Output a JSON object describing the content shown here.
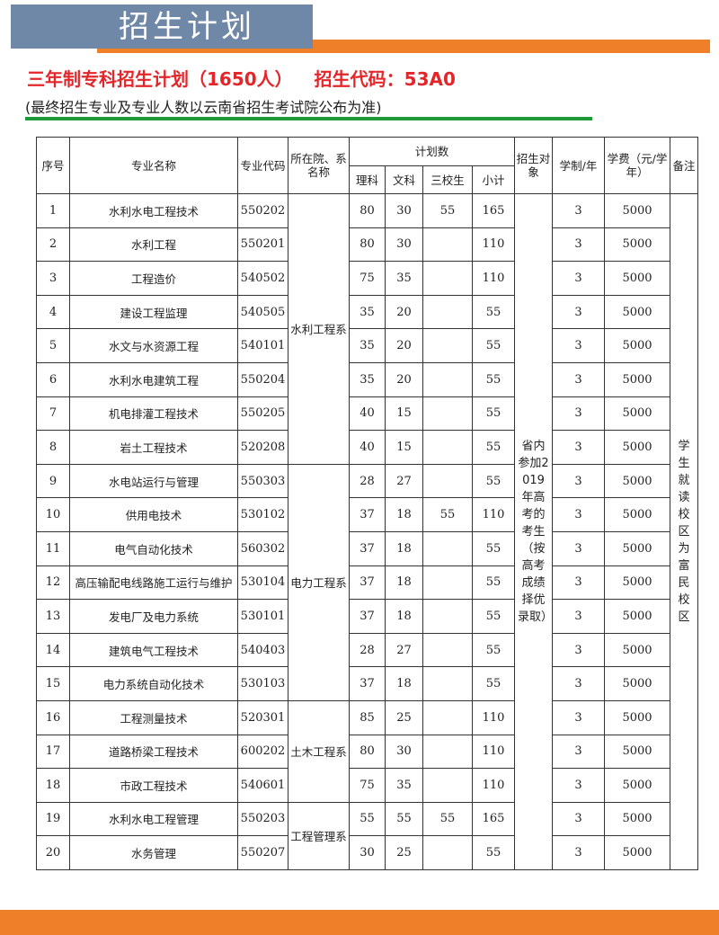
{
  "header": {
    "title": "招生计划",
    "plan_title": "三年制专科招生计划（1650人）",
    "code_label": "招生代码：53A0",
    "note": "(最终招生专业及专业人数以云南省招生考试院公布为准)"
  },
  "table": {
    "headers": {
      "no": "序号",
      "name": "专业名称",
      "code": "专业代码",
      "dept": "所在院、系名称",
      "plan": "计划数",
      "science": "理科",
      "arts": "文科",
      "three_school": "三校生",
      "subtotal": "小计",
      "target": "招生对象",
      "years": "学制/年",
      "fee": "学费（元/学年）",
      "remark": "备注"
    },
    "target_text": "省内参加2019年高考的考生（按高考成绩择优录取）",
    "remark_text": "学生就读校区为富民校区",
    "departments": [
      {
        "name": "水利工程系",
        "rows": 8
      },
      {
        "name": "电力工程系",
        "rows": 7
      },
      {
        "name": "土木工程系",
        "rows": 3
      },
      {
        "name": "工程管理系",
        "rows": 2
      }
    ],
    "rows": [
      [
        "1",
        "水利水电工程技术",
        "550202",
        "80",
        "30",
        "55",
        "165",
        "3",
        "5000"
      ],
      [
        "2",
        "水利工程",
        "550201",
        "80",
        "30",
        "",
        "110",
        "3",
        "5000"
      ],
      [
        "3",
        "工程造价",
        "540502",
        "75",
        "35",
        "",
        "110",
        "3",
        "5000"
      ],
      [
        "4",
        "建设工程监理",
        "540505",
        "35",
        "20",
        "",
        "55",
        "3",
        "5000"
      ],
      [
        "5",
        "水文与水资源工程",
        "540101",
        "35",
        "20",
        "",
        "55",
        "3",
        "5000"
      ],
      [
        "6",
        "水利水电建筑工程",
        "550204",
        "35",
        "20",
        "",
        "55",
        "3",
        "5000"
      ],
      [
        "7",
        "机电排灌工程技术",
        "550205",
        "40",
        "15",
        "",
        "55",
        "3",
        "5000"
      ],
      [
        "8",
        "岩土工程技术",
        "520208",
        "40",
        "15",
        "",
        "55",
        "3",
        "5000"
      ],
      [
        "9",
        "水电站运行与管理",
        "550303",
        "28",
        "27",
        "",
        "55",
        "3",
        "5000"
      ],
      [
        "10",
        "供用电技术",
        "530102",
        "37",
        "18",
        "55",
        "110",
        "3",
        "5000"
      ],
      [
        "11",
        "电气自动化技术",
        "560302",
        "37",
        "18",
        "",
        "55",
        "3",
        "5000"
      ],
      [
        "12",
        "高压输配电线路施工运行与维护",
        "530104",
        "37",
        "18",
        "",
        "55",
        "3",
        "5000"
      ],
      [
        "13",
        "发电厂及电力系统",
        "530101",
        "37",
        "18",
        "",
        "55",
        "3",
        "5000"
      ],
      [
        "14",
        "建筑电气工程技术",
        "540403",
        "28",
        "27",
        "",
        "55",
        "3",
        "5000"
      ],
      [
        "15",
        "电力系统自动化技术",
        "530103",
        "37",
        "18",
        "",
        "55",
        "3",
        "5000"
      ],
      [
        "16",
        "工程测量技术",
        "520301",
        "85",
        "25",
        "",
        "110",
        "3",
        "5000"
      ],
      [
        "17",
        "道路桥梁工程技术",
        "600202",
        "80",
        "30",
        "",
        "110",
        "3",
        "5000"
      ],
      [
        "18",
        "市政工程技术",
        "540601",
        "75",
        "35",
        "",
        "110",
        "3",
        "5000"
      ],
      [
        "19",
        "水利水电工程管理",
        "550203",
        "55",
        "55",
        "55",
        "165",
        "3",
        "5000"
      ],
      [
        "20",
        "水务管理",
        "550207",
        "30",
        "25",
        "",
        "55",
        "3",
        "5000"
      ]
    ]
  }
}
